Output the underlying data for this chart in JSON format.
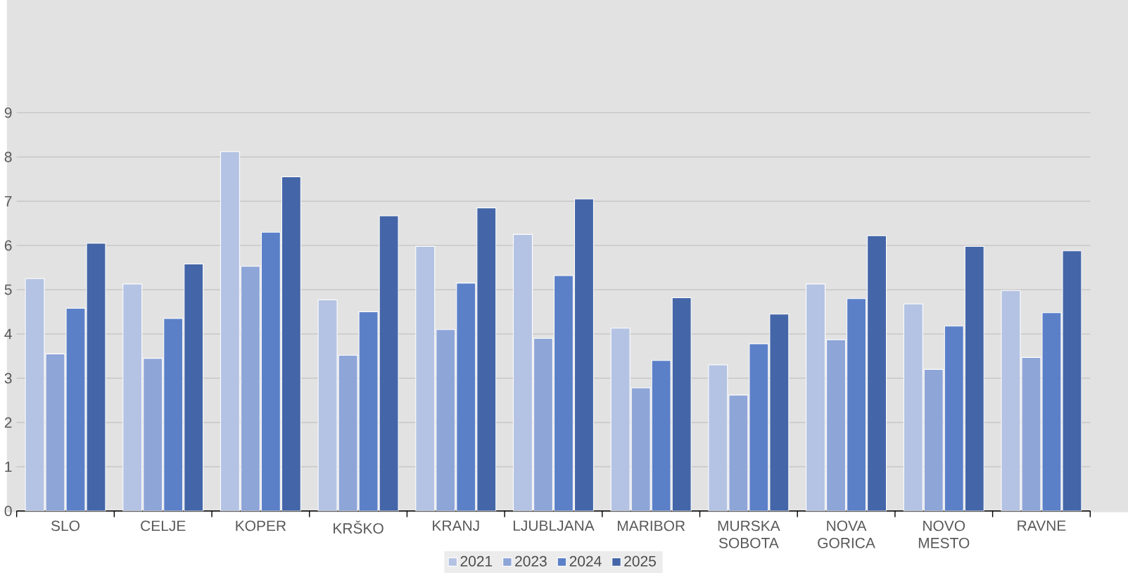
{
  "chart_data": {
    "type": "bar",
    "categories": [
      "SLO",
      "CELJE",
      "KOPER",
      "KRŠKO",
      "KRANJ",
      "LJUBLJANA",
      "MARIBOR",
      "MURSKA SOBOTA",
      "NOVA GORICA",
      "NOVO MESTO",
      "RAVNE"
    ],
    "series": [
      {
        "name": "2021",
        "color": "#b4c3e3",
        "values": [
          5.25,
          5.13,
          8.12,
          4.77,
          5.98,
          6.25,
          4.13,
          3.3,
          5.13,
          4.68,
          4.98
        ]
      },
      {
        "name": "2023",
        "color": "#8ea5d8",
        "values": [
          3.55,
          3.45,
          5.53,
          3.52,
          4.1,
          3.9,
          2.78,
          2.62,
          3.87,
          3.2,
          3.47
        ]
      },
      {
        "name": "2024",
        "color": "#5b80c8",
        "values": [
          4.58,
          4.35,
          6.3,
          4.5,
          5.15,
          5.32,
          3.4,
          3.78,
          4.8,
          4.18,
          4.48
        ]
      },
      {
        "name": "2025",
        "color": "#4466a8",
        "values": [
          6.05,
          5.58,
          7.55,
          6.67,
          6.85,
          7.05,
          4.82,
          4.45,
          6.22,
          5.98,
          5.88
        ]
      }
    ],
    "ylim": [
      0,
      9
    ],
    "yticks": [
      0,
      1,
      2,
      3,
      4,
      5,
      6,
      7,
      8,
      9
    ],
    "grid": "y",
    "legend": "bottom"
  }
}
